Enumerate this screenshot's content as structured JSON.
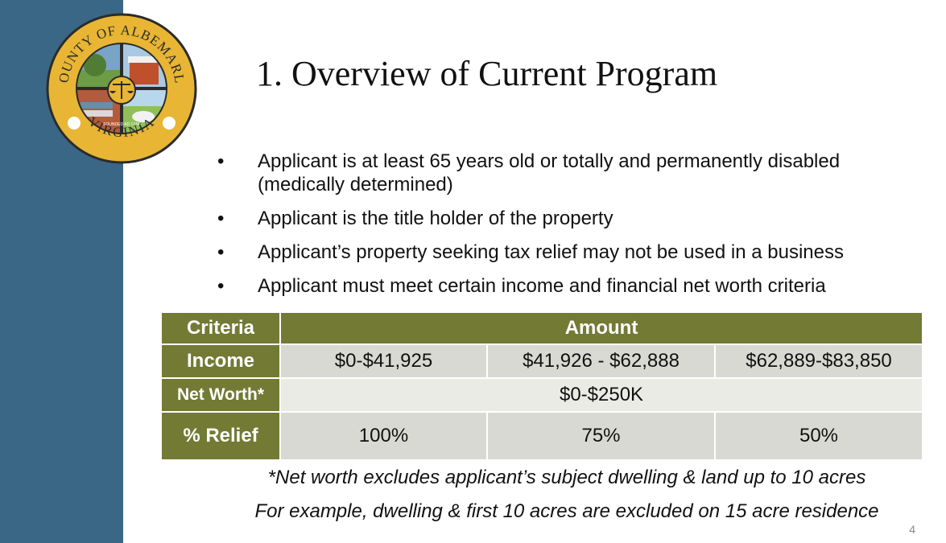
{
  "seal": {
    "top_text": "COUNTY OF ALBEMARLE",
    "bottom_text": "VIRGINIA",
    "founded_text": "FOUNDED AD 1744"
  },
  "title": "1. Overview of Current Program",
  "bullets": [
    "Applicant is at least 65 years old or totally and permanently disabled (medically determined)",
    "Applicant is the title holder of the property",
    "Applicant’s property seeking tax relief may not be used in a business",
    "Applicant must meet certain income and financial net worth criteria"
  ],
  "table": {
    "header_criteria": "Criteria",
    "header_amount": "Amount",
    "income_label": "Income",
    "income_values": [
      "$0-$41,925",
      "$41,926 - $62,888",
      "$62,889-$83,850"
    ],
    "networth_label": "Net Worth*",
    "networth_value": "$0-$250K",
    "relief_label": "% Relief",
    "relief_values": [
      "100%",
      "75%",
      "50%"
    ]
  },
  "notes": [
    "*Net worth excludes applicant’s subject dwelling & land up to 10 acres",
    "For example, dwelling & first 10 acres are excluded on 15 acre residence"
  ],
  "page_number": "4"
}
